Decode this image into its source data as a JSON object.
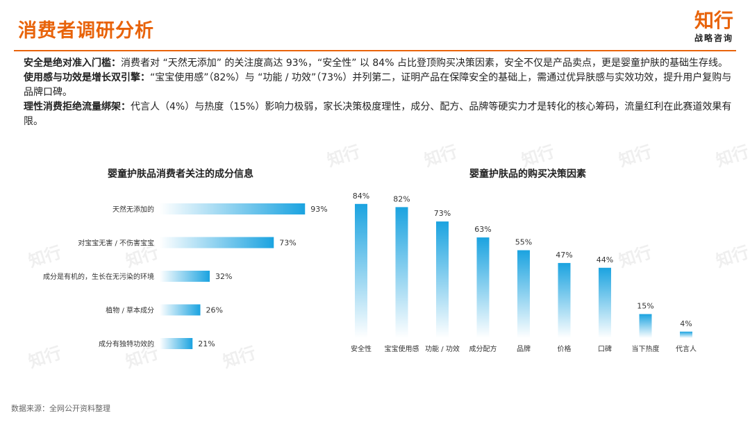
{
  "header": {
    "title": "消费者调研分析",
    "logo_main": "知行",
    "logo_sub": "战略咨询"
  },
  "summary": [
    {
      "lead": "安全是绝对准入门槛：",
      "text": "消费者对 “天然无添加” 的关注度高达 93%，“安全性” 以 84% 占比登顶购买决策因素，安全不仅是产品卖点，更是婴童护肤的基础生存线。"
    },
    {
      "lead": "使用感与功效是增长双引擎：",
      "text": "“宝宝使用感”（82%）与 “功能 / 功效”（73%）并列第二，证明产品在保障安全的基础上，需通过优异肤感与实效功效，提升用户复购与品牌口碑。"
    },
    {
      "lead": "理性消费拒绝流量绑架：",
      "text": "代言人（4%）与热度（15%）影响力极弱，家长决策极度理性，成分、配方、品牌等硬实力才是转化的核心筹码，流量红利在此赛道效果有限。"
    }
  ],
  "source": "数据来源：全网公开资料整理",
  "colors": {
    "accent": "#e8630a",
    "bar_dark": "#1ba3e0",
    "bar_light": "#ffffff"
  },
  "chart_data": [
    {
      "type": "bar",
      "orientation": "horizontal",
      "title": "婴童护肤品消费者关注的成分信息",
      "categories": [
        "天然无添加的",
        "对宝宝无害 / 不伤害宝宝",
        "成分是有机的，生长在无污染的环境",
        "植物 / 草本成分",
        "成分有独特功效的"
      ],
      "values": [
        93,
        73,
        32,
        26,
        21
      ],
      "labels": [
        "93%",
        "73%",
        "32%",
        "26%",
        "21%"
      ],
      "unit": "%",
      "xlim": [
        0,
        100
      ]
    },
    {
      "type": "bar",
      "orientation": "vertical",
      "title": "婴童护肤品的购买决策因素",
      "categories": [
        "安全性",
        "宝宝使用感",
        "功能 / 功效",
        "成分配方",
        "品牌",
        "价格",
        "口碑",
        "当下热度",
        "代言人"
      ],
      "values": [
        84,
        82,
        73,
        63,
        55,
        47,
        44,
        15,
        4
      ],
      "labels": [
        "84%",
        "82%",
        "73%",
        "63%",
        "55%",
        "47%",
        "44%",
        "15%",
        "4%"
      ],
      "unit": "%",
      "ylim": [
        0,
        100
      ]
    }
  ]
}
